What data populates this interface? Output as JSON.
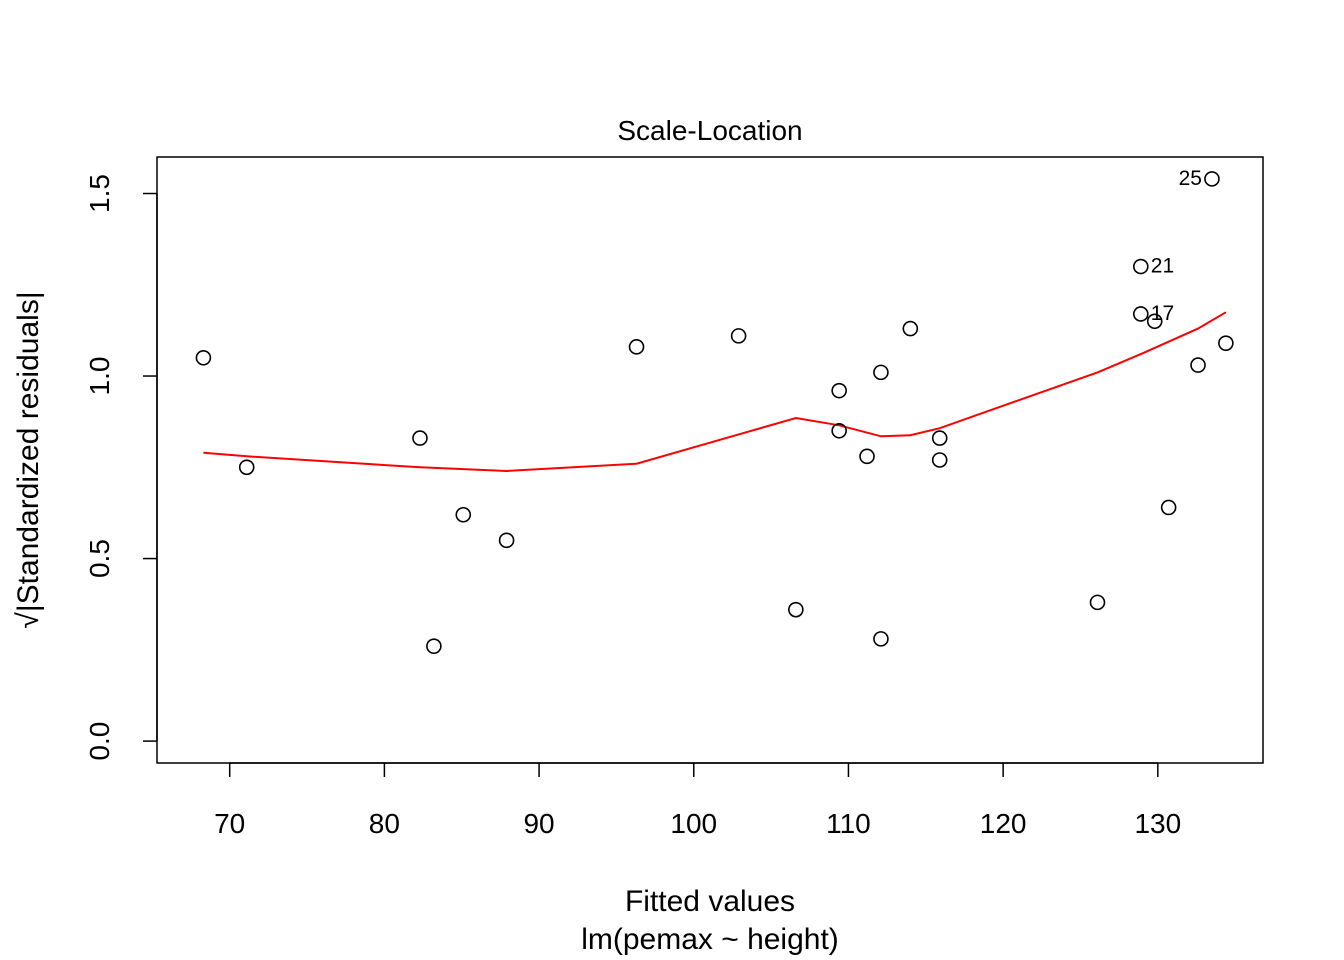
{
  "chart_data": {
    "type": "scatter",
    "title": "Scale-Location",
    "xlabel": "Fitted values",
    "xlabel_sub": "lm(pemax ~ height)",
    "ylabel": "√|Standardized residuals|",
    "xlim": [
      65.3,
      136.8
    ],
    "ylim": [
      -0.06,
      1.6
    ],
    "x_ticks": [
      70,
      80,
      90,
      100,
      110,
      120,
      130
    ],
    "x_tick_labels": [
      "70",
      "80",
      "90",
      "100",
      "110",
      "120",
      "130"
    ],
    "y_ticks": [
      0.0,
      0.5,
      1.0,
      1.5
    ],
    "y_tick_labels": [
      "0.0",
      "0.5",
      "1.0",
      "1.5"
    ],
    "grid": false,
    "points": [
      {
        "x": 68.3,
        "y": 1.05
      },
      {
        "x": 71.1,
        "y": 0.75
      },
      {
        "x": 82.3,
        "y": 0.83
      },
      {
        "x": 83.2,
        "y": 0.26
      },
      {
        "x": 85.1,
        "y": 0.62
      },
      {
        "x": 87.9,
        "y": 0.55
      },
      {
        "x": 96.3,
        "y": 1.08
      },
      {
        "x": 102.9,
        "y": 1.11
      },
      {
        "x": 106.6,
        "y": 0.36
      },
      {
        "x": 109.4,
        "y": 0.96
      },
      {
        "x": 109.4,
        "y": 0.85
      },
      {
        "x": 111.2,
        "y": 0.78
      },
      {
        "x": 112.1,
        "y": 1.01
      },
      {
        "x": 112.1,
        "y": 0.28
      },
      {
        "x": 114.0,
        "y": 1.13
      },
      {
        "x": 115.9,
        "y": 0.83
      },
      {
        "x": 115.9,
        "y": 0.77
      },
      {
        "x": 126.1,
        "y": 0.38
      },
      {
        "x": 128.9,
        "y": 1.3,
        "label": "21"
      },
      {
        "x": 128.9,
        "y": 1.17,
        "label": "17"
      },
      {
        "x": 129.8,
        "y": 1.15
      },
      {
        "x": 130.7,
        "y": 0.64
      },
      {
        "x": 132.6,
        "y": 1.03
      },
      {
        "x": 133.5,
        "y": 1.54,
        "label": "25"
      },
      {
        "x": 134.4,
        "y": 1.09
      }
    ],
    "smooth_line": {
      "color": "#ff0000",
      "points": [
        [
          68.3,
          0.79
        ],
        [
          71.1,
          0.78
        ],
        [
          82.3,
          0.75
        ],
        [
          87.9,
          0.74
        ],
        [
          96.3,
          0.76
        ],
        [
          102.9,
          0.84
        ],
        [
          106.6,
          0.885
        ],
        [
          109.4,
          0.865
        ],
        [
          112.1,
          0.835
        ],
        [
          114.0,
          0.838
        ],
        [
          115.9,
          0.857
        ],
        [
          126.1,
          1.01
        ],
        [
          128.9,
          1.06
        ],
        [
          132.6,
          1.13
        ],
        [
          134.4,
          1.175
        ]
      ]
    },
    "colors": {
      "points": "#000000",
      "smooth": "#ff0000",
      "axes": "#000000"
    }
  }
}
